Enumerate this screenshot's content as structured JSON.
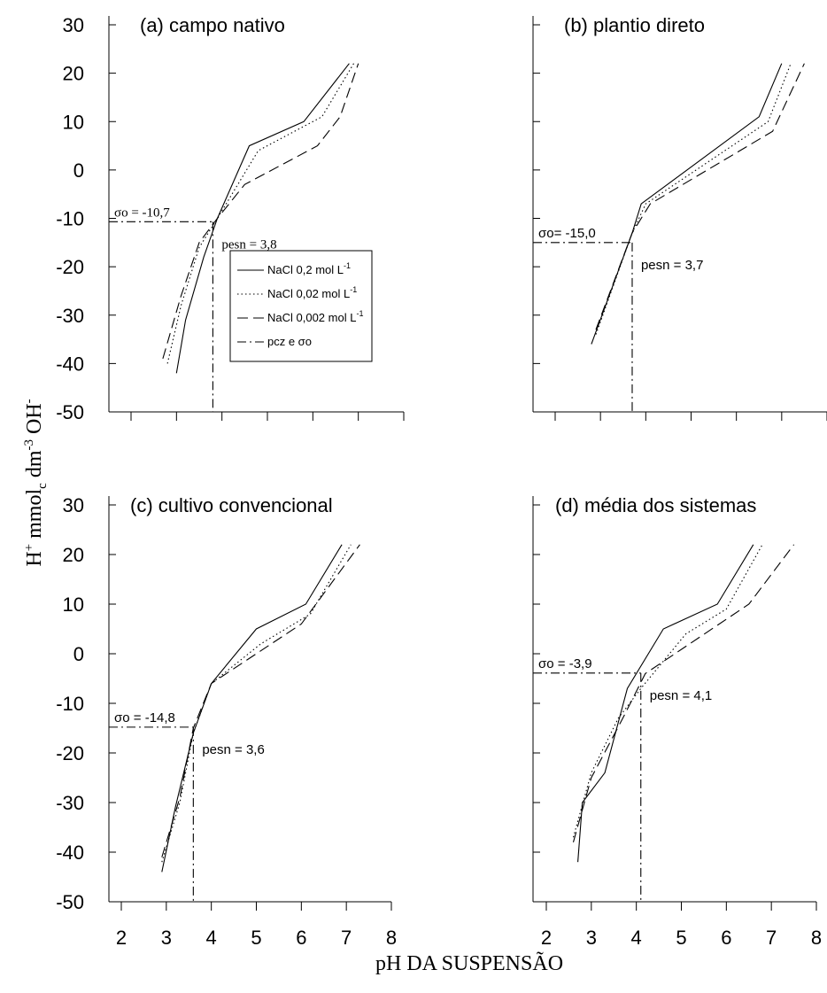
{
  "figure": {
    "ylabel": "H+ mmolc dm-3 OH-",
    "xlabel": "pH DA SUSPENSÃO"
  },
  "legend": [
    {
      "label": "NaCl 0,2 mol L",
      "sup": "-1",
      "dash": "solid"
    },
    {
      "label": "NaCl 0,02 mol L",
      "sup": "-1",
      "dash": "dotted"
    },
    {
      "label": "NaCl 0,002 mol L",
      "sup": "-1",
      "dash": "dashed"
    },
    {
      "label": "pcz e σo",
      "sup": "",
      "dash": "dashdot"
    }
  ],
  "y_tick_labels": [
    "30",
    "20",
    "10",
    "0",
    "-10",
    "-20",
    "-30",
    "-40",
    "-50"
  ],
  "x_tick_labels": [
    "2",
    "3",
    "4",
    "5",
    "6",
    "7",
    "8"
  ],
  "chart_data": [
    {
      "type": "line",
      "panel": "a",
      "title": "(a) campo nativo",
      "xlim": [
        2,
        8
      ],
      "ylim": [
        -50,
        30
      ],
      "series": [
        {
          "name": "NaCl 0,2 mol L-1",
          "x": [
            3.0,
            3.2,
            3.6,
            3.9,
            4.6,
            5.8,
            6.8
          ],
          "y": [
            -42,
            -31,
            -18,
            -10,
            5,
            10,
            22
          ]
        },
        {
          "name": "NaCl 0,02 mol L-1",
          "x": [
            2.8,
            3.1,
            3.5,
            3.9,
            4.8,
            6.2,
            6.9
          ],
          "y": [
            -40,
            -28,
            -16,
            -10,
            4,
            11,
            22
          ]
        },
        {
          "name": "NaCl 0,002 mol L-1",
          "x": [
            2.7,
            3.1,
            3.5,
            3.9,
            4.5,
            6.1,
            6.6,
            7.0
          ],
          "y": [
            -39,
            -26,
            -15,
            -10,
            -3,
            5,
            11,
            22
          ]
        }
      ],
      "pcz": {
        "ph": 3.8,
        "sigma": -10.7
      },
      "annotations": {
        "sigma_label": "σo = -10,7",
        "pcz_label": "pesn = 3,8"
      }
    },
    {
      "type": "line",
      "panel": "b",
      "title": "(b) plantio direto",
      "xlim": [
        2,
        8
      ],
      "ylim": [
        -50,
        30
      ],
      "series": [
        {
          "name": "NaCl 0,2 mol L-1",
          "x": [
            2.8,
            3.7,
            3.9,
            6.5,
            7.0
          ],
          "y": [
            -36,
            -13,
            -7,
            11,
            22
          ]
        },
        {
          "name": "NaCl 0,02 mol L-1",
          "x": [
            2.9,
            3.7,
            4.0,
            6.7,
            7.2
          ],
          "y": [
            -34,
            -13,
            -7,
            10,
            22
          ]
        },
        {
          "name": "NaCl 0,002 mol L-1",
          "x": [
            2.9,
            3.7,
            4.1,
            6.8,
            7.5
          ],
          "y": [
            -33,
            -13,
            -7,
            8,
            22
          ]
        }
      ],
      "pcz": {
        "ph": 3.7,
        "sigma": -15.0
      },
      "annotations": {
        "sigma_label": "σo= -15,0",
        "pcz_label": "pesn = 3,7"
      }
    },
    {
      "type": "line",
      "panel": "c",
      "title": "(c) cultivo convencional",
      "xlim": [
        2,
        8
      ],
      "ylim": [
        -50,
        30
      ],
      "series": [
        {
          "name": "NaCl 0,2 mol L-1",
          "x": [
            2.9,
            3.2,
            3.6,
            4.0,
            5.0,
            6.1,
            6.9
          ],
          "y": [
            -44,
            -31,
            -16,
            -6,
            5,
            10,
            22
          ]
        },
        {
          "name": "NaCl 0,02 mol L-1",
          "x": [
            2.9,
            3.3,
            3.6,
            4.0,
            5.1,
            6.2,
            7.1
          ],
          "y": [
            -42,
            -30,
            -16,
            -6,
            2,
            8,
            22
          ]
        },
        {
          "name": "NaCl 0,002 mol L-1",
          "x": [
            2.9,
            3.3,
            3.6,
            4.0,
            6.0,
            7.3
          ],
          "y": [
            -41,
            -29,
            -15,
            -6,
            6,
            22
          ]
        }
      ],
      "pcz": {
        "ph": 3.6,
        "sigma": -14.8
      },
      "annotations": {
        "sigma_label": "σo = -14,8",
        "pcz_label": "pesn = 3,6"
      }
    },
    {
      "type": "line",
      "panel": "d",
      "title": "(d) média dos sistemas",
      "xlim": [
        2,
        8
      ],
      "ylim": [
        -50,
        30
      ],
      "series": [
        {
          "name": "NaCl 0,2 mol L-1",
          "x": [
            2.7,
            2.8,
            3.3,
            3.8,
            4.6,
            5.8,
            6.6
          ],
          "y": [
            -42,
            -30,
            -24,
            -7,
            5,
            10,
            22
          ]
        },
        {
          "name": "NaCl 0,02 mol L-1",
          "x": [
            2.6,
            3.0,
            3.6,
            4.1,
            5.1,
            6.0,
            6.8
          ],
          "y": [
            -37,
            -24,
            -13,
            -7,
            4,
            9,
            22
          ]
        },
        {
          "name": "NaCl 0,002 mol L-1",
          "x": [
            2.6,
            3.0,
            3.7,
            4.2,
            6.5,
            7.5
          ],
          "y": [
            -38,
            -25,
            -13,
            -4,
            10,
            22
          ]
        }
      ],
      "pcz": {
        "ph": 4.1,
        "sigma": -3.9
      },
      "annotations": {
        "sigma_label": "σo = -3,9",
        "pcz_label": "pesn = 4,1"
      }
    }
  ]
}
